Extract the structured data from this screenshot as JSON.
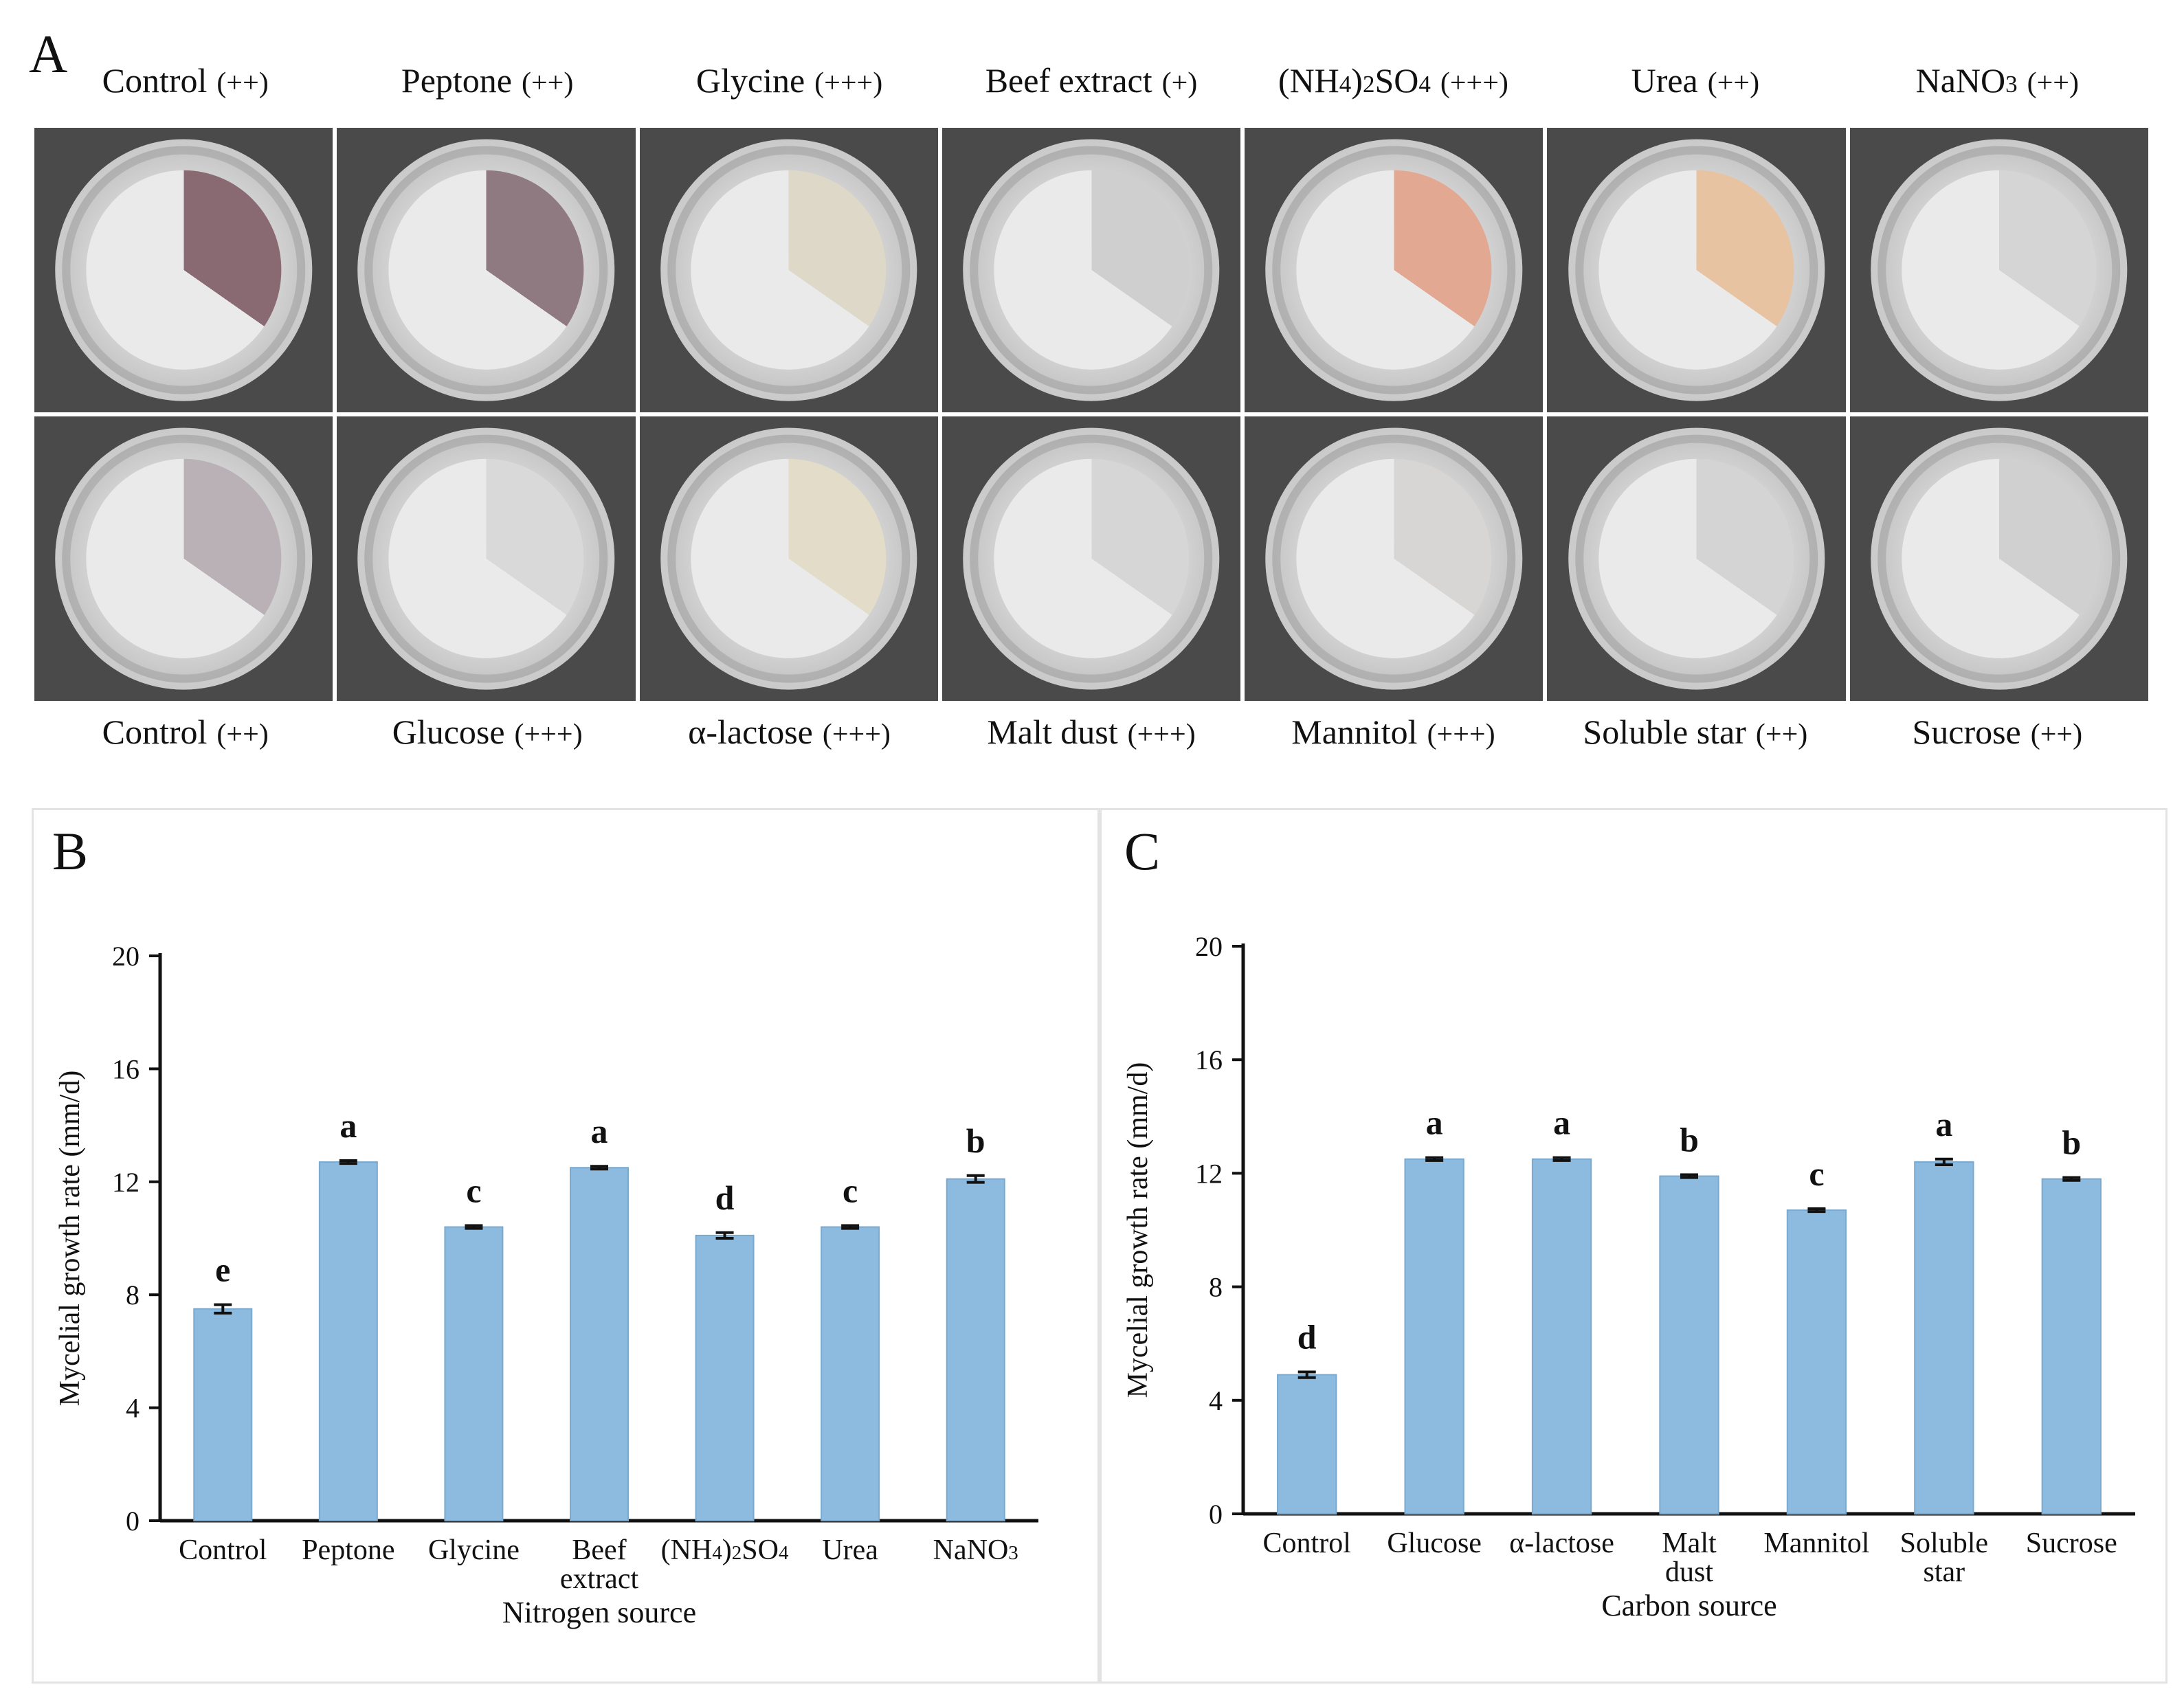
{
  "panels": {
    "a_label": "A",
    "b_label": "B",
    "c_label": "C"
  },
  "colors": {
    "bar": "#8dbbe0",
    "bar_edge": "#7aa9cf",
    "axis": "#111111",
    "tile_bg": "#4a4a4a"
  },
  "photos": {
    "nitrogen_row": [
      {
        "name": "Control",
        "mark": "(++)",
        "pigment": "#8a6a72"
      },
      {
        "name": "Peptone",
        "mark": "(++)",
        "pigment": "#8e7a80"
      },
      {
        "name": "Glycine",
        "mark": "(+++)",
        "pigment": "#ddd8c8"
      },
      {
        "name": "Beef extract",
        "mark": "(+)",
        "pigment": "#cfcfcf"
      },
      {
        "name": "(NH4)2SO4",
        "mark": "(+++)",
        "pigment": "#e3a892"
      },
      {
        "name": "Urea",
        "mark": "(++)",
        "pigment": "#e7c3a2"
      },
      {
        "name": "NaNO3",
        "mark": "(++)",
        "pigment": "#d5d5d5"
      }
    ],
    "carbon_row": [
      {
        "name": "Control",
        "mark": "(++)",
        "pigment": "#b9b1b6"
      },
      {
        "name": "Glucose",
        "mark": "(+++)",
        "pigment": "#d9d9d9"
      },
      {
        "name": "α-lactose",
        "mark": "(+++)",
        "pigment": "#e2dcc9"
      },
      {
        "name": "Malt dust",
        "mark": "(+++)",
        "pigment": "#d6d6d6"
      },
      {
        "name": "Mannitol",
        "mark": "(+++)",
        "pigment": "#d8d6d4"
      },
      {
        "name": "Soluble star",
        "mark": "(++)",
        "pigment": "#d4d4d4"
      },
      {
        "name": "Sucrose",
        "mark": "(++)",
        "pigment": "#d0d0d0"
      }
    ]
  },
  "chart_data": [
    {
      "type": "bar",
      "panel": "B",
      "title": "",
      "xlabel": "Nitrogen source",
      "ylabel": "Mycelial growth rate (mm/d)",
      "ylim": [
        0,
        20
      ],
      "yticks": [
        "0",
        "4",
        "8",
        "12",
        "16",
        "20"
      ],
      "categories": [
        [
          "Control"
        ],
        [
          "Peptone"
        ],
        [
          "Glycine"
        ],
        [
          "Beef",
          "extract"
        ],
        [
          "(NH4)2SO4"
        ],
        [
          "Urea"
        ],
        [
          "NaNO3"
        ]
      ],
      "values": [
        7.5,
        12.7,
        10.4,
        12.5,
        10.1,
        10.4,
        12.1
      ],
      "errors": [
        0.15,
        0.05,
        0.05,
        0.05,
        0.1,
        0.05,
        0.12
      ],
      "letters": [
        "e",
        "a",
        "c",
        "a",
        "d",
        "c",
        "b"
      ]
    },
    {
      "type": "bar",
      "panel": "C",
      "title": "",
      "xlabel": "Carbon source",
      "ylabel": "Mycelial growth rate (mm/d)",
      "ylim": [
        0,
        20
      ],
      "yticks": [
        "0",
        "4",
        "8",
        "12",
        "16",
        "20"
      ],
      "categories": [
        [
          "Control"
        ],
        [
          "Glucose"
        ],
        [
          "α-lactose"
        ],
        [
          "Malt",
          "dust"
        ],
        [
          "Mannitol"
        ],
        [
          "Soluble",
          "star"
        ],
        [
          "Sucrose"
        ]
      ],
      "values": [
        4.9,
        12.5,
        12.5,
        11.9,
        10.7,
        12.4,
        11.8
      ],
      "errors": [
        0.1,
        0.05,
        0.05,
        0.05,
        0.05,
        0.1,
        0.05
      ],
      "letters": [
        "d",
        "a",
        "a",
        "b",
        "c",
        "a",
        "b"
      ]
    }
  ]
}
